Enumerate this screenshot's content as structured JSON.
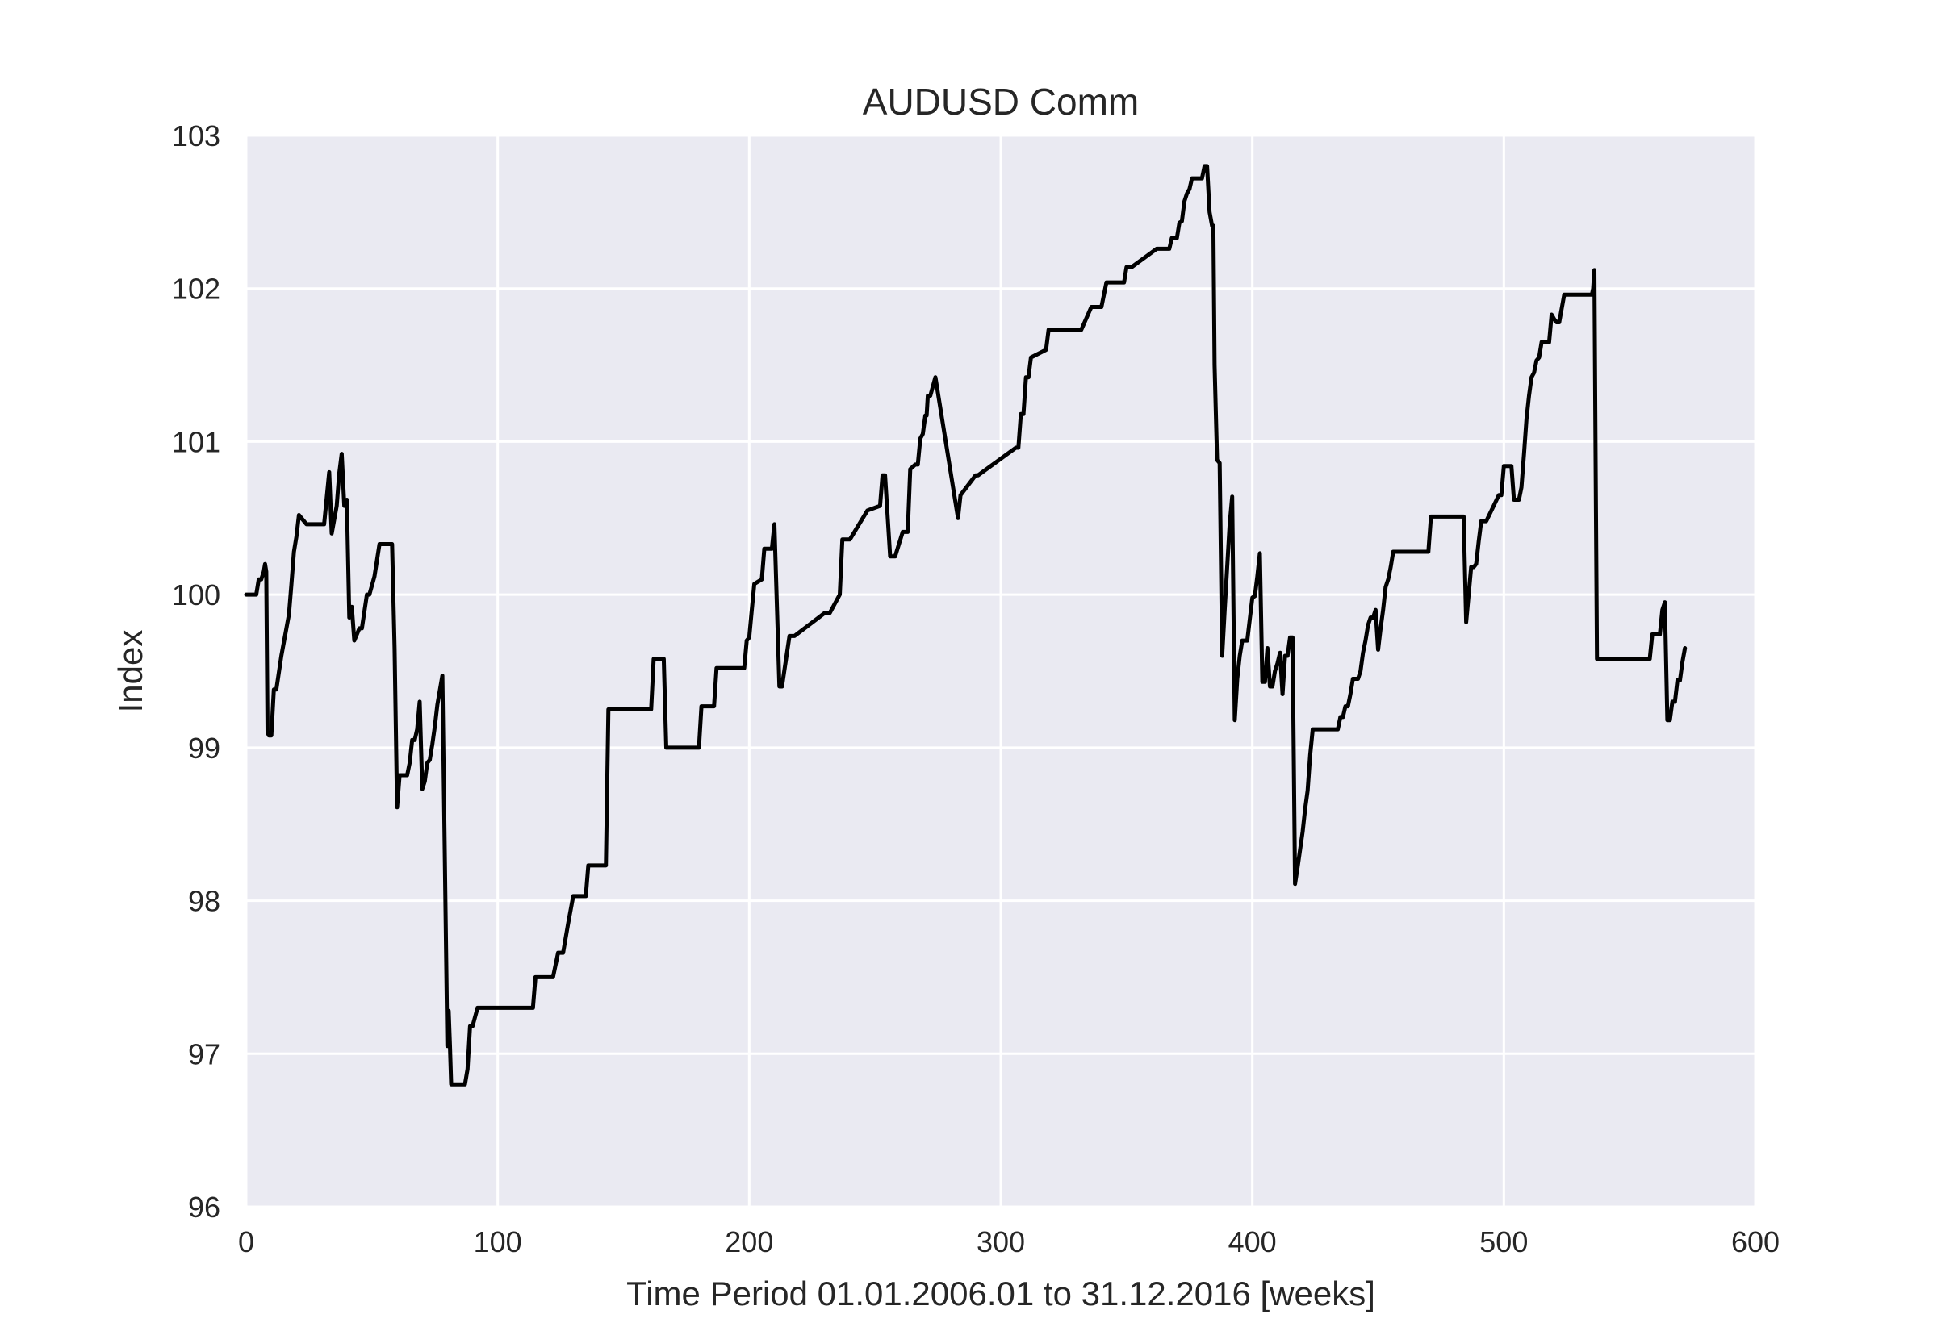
{
  "chart_data": {
    "type": "line",
    "title": "AUDUSD Comm",
    "xlabel": "Time Period 01.01.2006.01 to 31.12.2016 [weeks]",
    "ylabel": "Index",
    "xlim": [
      0,
      600
    ],
    "ylim": [
      96,
      103
    ],
    "xticks": [
      0,
      100,
      200,
      300,
      400,
      500,
      600
    ],
    "yticks": [
      96,
      97,
      98,
      99,
      100,
      101,
      102,
      103
    ],
    "grid": true,
    "colors": {
      "background": "#eaeaf2",
      "grid": "#ffffff",
      "line": "#000000"
    },
    "series": [
      {
        "x": [
          0,
          4,
          5,
          6,
          7,
          7.5,
          8,
          8.5,
          9,
          10,
          11,
          12,
          14,
          17,
          18,
          19,
          20,
          21,
          24,
          26,
          28,
          30,
          31,
          33,
          34,
          36,
          37,
          38,
          39,
          40,
          41,
          42,
          43,
          45,
          46,
          48,
          49,
          51,
          53,
          55,
          58,
          59,
          60,
          61,
          63,
          64,
          65,
          66,
          67,
          68,
          69,
          70,
          71,
          72,
          73,
          74,
          75,
          76,
          78,
          80,
          80.5,
          81,
          81.5,
          82,
          82.5,
          83,
          84,
          86,
          87,
          88,
          89,
          90,
          92,
          94,
          112,
          114,
          115,
          121,
          122,
          124,
          126,
          128,
          130,
          132,
          135,
          136,
          140,
          142,
          143,
          144,
          155,
          161,
          162,
          166,
          167,
          168,
          174,
          180,
          181,
          186,
          187,
          197,
          198,
          199,
          200,
          201,
          202,
          205,
          206,
          207,
          208,
          209,
          210,
          212,
          213,
          216,
          218,
          230,
          231,
          232,
          236,
          237,
          238,
          240,
          247,
          252,
          253,
          254,
          256,
          258,
          261,
          263,
          264,
          266,
          267,
          268,
          269,
          270,
          270.5,
          271,
          272,
          274,
          283,
          284,
          290,
          291,
          306,
          307,
          308,
          309,
          310,
          311,
          312,
          318,
          319,
          320,
          332,
          336,
          337,
          340,
          342,
          344,
          349,
          350,
          351,
          352,
          362,
          363,
          367,
          368,
          369,
          370,
          371,
          372,
          373,
          374,
          375,
          376,
          377,
          378,
          379,
          380,
          381,
          382,
          383,
          384,
          384.5,
          385,
          386,
          387,
          388,
          389,
          390,
          391,
          392,
          393,
          394,
          395,
          396,
          398,
          400,
          401,
          402,
          403,
          404,
          405,
          406,
          407,
          408,
          409,
          410,
          411,
          412,
          413,
          414,
          415,
          416,
          417,
          418,
          420,
          421,
          422,
          423,
          424,
          426,
          430,
          434,
          435,
          436,
          437,
          438,
          439,
          440,
          441,
          442,
          443,
          444,
          445,
          446,
          447,
          448,
          449,
          450,
          451,
          452,
          453,
          454,
          455,
          456,
          457,
          464,
          470,
          471,
          479,
          480,
          481,
          482,
          483,
          484,
          485,
          486,
          487,
          488,
          489,
          490,
          491,
          492,
          493,
          498,
          499,
          500,
          501,
          502,
          503,
          504,
          506,
          507,
          508,
          509,
          510,
          511,
          512,
          513,
          514,
          515,
          516,
          517,
          518,
          519,
          520,
          521,
          522,
          524,
          532,
          533,
          534,
          535,
          535.5,
          536,
          536.5,
          537,
          538,
          546,
          558,
          559,
          560,
          561,
          562,
          563,
          564,
          565,
          566,
          567,
          568,
          569,
          570,
          571,
          572
        ],
        "y": [
          100.0,
          100.0,
          100.1,
          100.1,
          100.15,
          100.2,
          100.15,
          99.1,
          99.08,
          99.08,
          99.38,
          99.38,
          99.6,
          99.87,
          100.07,
          100.28,
          100.38,
          100.52,
          100.46,
          100.46,
          100.46,
          100.46,
          100.46,
          100.8,
          100.4,
          100.58,
          100.79,
          100.92,
          100.58,
          100.62,
          99.85,
          99.92,
          99.7,
          99.78,
          99.78,
          100.0,
          100.0,
          100.12,
          100.33,
          100.33,
          100.33,
          99.65,
          98.61,
          98.82,
          98.82,
          98.82,
          98.9,
          99.05,
          99.05,
          99.12,
          99.3,
          98.73,
          98.78,
          98.9,
          98.92,
          99.02,
          99.14,
          99.28,
          99.47,
          97.05,
          97.28,
          97.05,
          96.8,
          96.8,
          96.8,
          96.8,
          96.8,
          96.8,
          96.8,
          96.9,
          97.18,
          97.18,
          97.3,
          97.3,
          97.3,
          97.3,
          97.5,
          97.5,
          97.5,
          97.66,
          97.66,
          97.85,
          98.03,
          98.03,
          98.03,
          98.23,
          98.23,
          98.23,
          98.23,
          99.25,
          99.25,
          99.25,
          99.58,
          99.58,
          99.0,
          99.0,
          99.0,
          99.0,
          99.27,
          99.27,
          99.52,
          99.52,
          99.52,
          99.7,
          99.72,
          99.9,
          100.07,
          100.1,
          100.3,
          100.3,
          100.3,
          100.3,
          100.46,
          99.4,
          99.4,
          99.73,
          99.73,
          99.88,
          99.88,
          99.88,
          100.0,
          100.36,
          100.36,
          100.36,
          100.55,
          100.58,
          100.78,
          100.78,
          100.25,
          100.25,
          100.41,
          100.41,
          100.82,
          100.85,
          100.85,
          101.02,
          101.05,
          101.17,
          101.17,
          101.3,
          101.3,
          101.42,
          100.5,
          100.65,
          100.78,
          100.78,
          100.96,
          100.96,
          101.18,
          101.18,
          101.42,
          101.42,
          101.55,
          101.6,
          101.73,
          101.73,
          101.73,
          101.88,
          101.88,
          101.88,
          102.04,
          102.04,
          102.04,
          102.14,
          102.14,
          102.14,
          102.26,
          102.26,
          102.26,
          102.33,
          102.33,
          102.33,
          102.43,
          102.44,
          102.57,
          102.62,
          102.65,
          102.72,
          102.72,
          102.72,
          102.72,
          102.72,
          102.8,
          102.8,
          102.5,
          102.41,
          102.41,
          101.5,
          100.88,
          100.86,
          99.6,
          99.9,
          100.18,
          100.46,
          100.64,
          99.18,
          99.45,
          99.6,
          99.7,
          99.7,
          99.98,
          99.99,
          100.12,
          100.27,
          99.43,
          99.43,
          99.65,
          99.4,
          99.4,
          99.5,
          99.55,
          99.62,
          99.35,
          99.6,
          99.6,
          99.72,
          99.72,
          98.11,
          98.22,
          98.45,
          98.6,
          98.72,
          98.95,
          99.12,
          99.12,
          99.12,
          99.12,
          99.2,
          99.2,
          99.27,
          99.27,
          99.35,
          99.45,
          99.45,
          99.45,
          99.5,
          99.62,
          99.7,
          99.8,
          99.85,
          99.85,
          99.9,
          99.64,
          99.78,
          99.9,
          100.05,
          100.1,
          100.18,
          100.28,
          100.28,
          100.28,
          100.28,
          100.51,
          100.51,
          100.51,
          100.51,
          100.51,
          100.51,
          100.51,
          99.82,
          100.0,
          100.18,
          100.18,
          100.2,
          100.35,
          100.48,
          100.48,
          100.48,
          100.65,
          100.65,
          100.84,
          100.84,
          100.84,
          100.84,
          100.62,
          100.62,
          100.7,
          100.92,
          101.15,
          101.3,
          101.42,
          101.45,
          101.53,
          101.55,
          101.65,
          101.65,
          101.65,
          101.65,
          101.83,
          101.8,
          101.78,
          101.78,
          101.96,
          101.96,
          101.96,
          101.96,
          101.96,
          102.0,
          102.12,
          100.8,
          99.58,
          99.58,
          99.58,
          99.58,
          99.74,
          99.74,
          99.74,
          99.74,
          99.9,
          99.95,
          99.18,
          99.18,
          99.3,
          99.3,
          99.44,
          99.44,
          99.56,
          99.65
        ]
      }
    ]
  }
}
